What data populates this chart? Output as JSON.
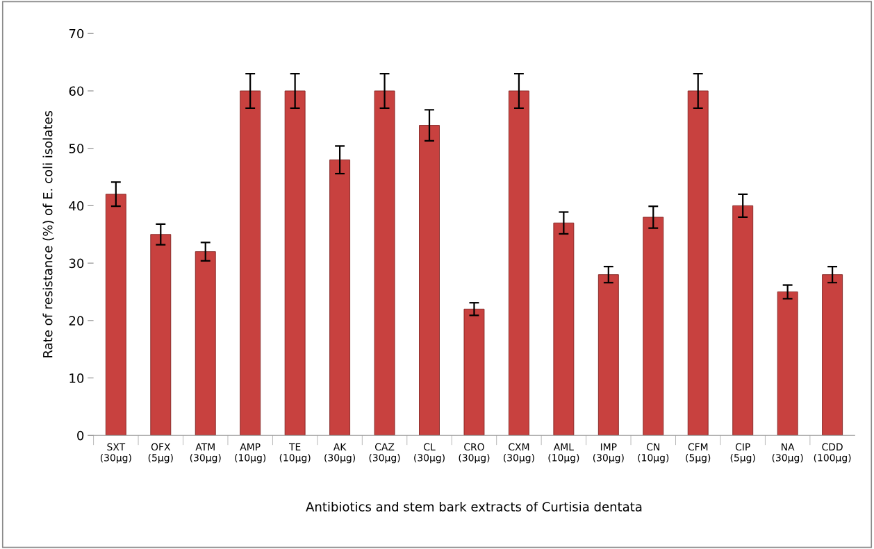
{
  "chart_data": {
    "type": "bar",
    "xlabel": "Antibiotics and stem bark extracts of Curtisia dentata",
    "ylabel": "Rate of resistance (%) of E. coli isolates",
    "categories": [
      "SXT\n(30µg)",
      "OFX\n(5µg)",
      "ATM\n(30µg)",
      "AMP\n(10µg)",
      "TE\n(10µg)",
      "AK\n(30µg)",
      "CAZ\n(30µg)",
      "CL\n(30µg)",
      "CRO\n(30µg)",
      "CXM\n(30µg)",
      "AML\n(10µg)",
      "IMP\n(30µg)",
      "CN\n(10µg)",
      "CFM\n(5µg)",
      "CIP\n(5µg)",
      "NA\n(30µg)",
      "CDD\n(100µg)"
    ],
    "values": [
      42,
      35,
      32,
      60,
      60,
      48,
      60,
      54,
      22,
      60,
      37,
      28,
      38,
      60,
      40,
      25,
      28
    ],
    "errors": [
      2.1,
      1.8,
      1.6,
      3,
      3,
      2.4,
      3,
      2.7,
      1.1,
      3,
      1.9,
      1.4,
      1.9,
      3,
      2,
      1.2,
      1.4
    ],
    "color": "#c8413f",
    "ylim": [
      0,
      70
    ],
    "yticks": [
      0,
      10,
      20,
      30,
      40,
      50,
      60,
      70
    ],
    "grid": false,
    "legend": false
  }
}
